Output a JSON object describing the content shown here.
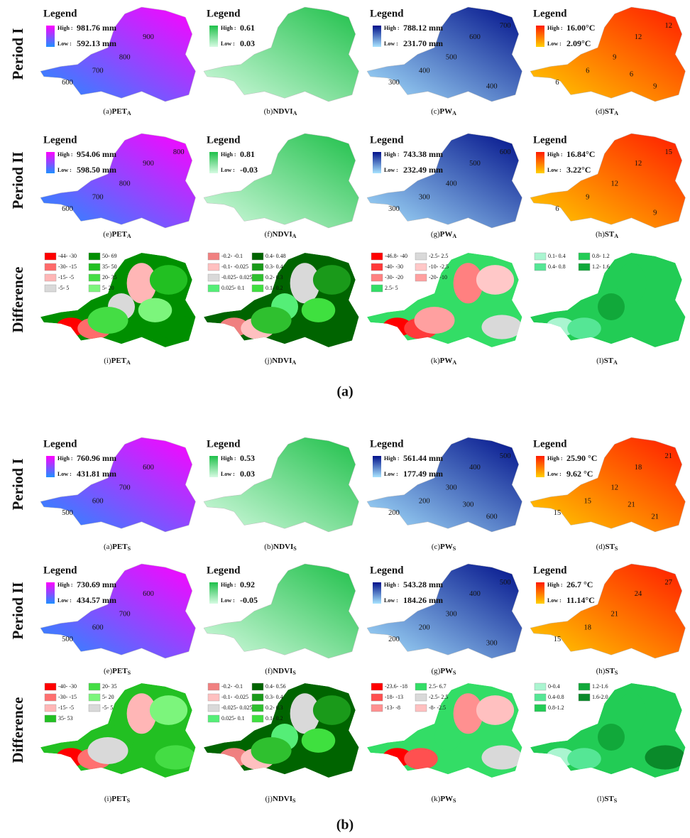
{
  "panels": [
    {
      "label": "(a)",
      "rows": [
        {
          "label": "Period I",
          "maps": [
            {
              "caption": {
                "letter": "(a)",
                "name": "PET",
                "sub": "A"
              },
              "legend": {
                "title": "Legend",
                "high": {
                  "label": "High :",
                  "value": "981.76 mm",
                  "color": "#ff00ff"
                },
                "low": {
                  "label": "Low :",
                  "value": "592.13 mm",
                  "color": "#1e90ff"
                }
              },
              "contours": [
                "600",
                "700",
                "800",
                "900"
              ]
            },
            {
              "caption": {
                "letter": "(b)",
                "name": "NDVI",
                "sub": "A"
              },
              "legend": {
                "title": "Legend",
                "high": {
                  "label": "High :",
                  "value": "0.61",
                  "color": "#1fc04a"
                },
                "low": {
                  "label": "Low :",
                  "value": "0.03",
                  "color": "#d6fbe2"
                }
              },
              "contours": []
            },
            {
              "caption": {
                "letter": "(c)",
                "name": "PW",
                "sub": "A"
              },
              "legend": {
                "title": "Legend",
                "high": {
                  "label": "High :",
                  "value": "788.12 mm",
                  "color": "#00108a"
                },
                "low": {
                  "label": "Low :",
                  "value": "231.70 mm",
                  "color": "#a8e4ff"
                }
              },
              "contours": [
                "300",
                "400",
                "500",
                "600",
                "700",
                "400"
              ]
            },
            {
              "caption": {
                "letter": "(d)",
                "name": "ST",
                "sub": "A"
              },
              "legend": {
                "title": "Legend",
                "high": {
                  "label": "High :",
                  "value": "16.00°C",
                  "color": "#ff1a00"
                },
                "low": {
                  "label": "Low :",
                  "value": "2.09°C",
                  "color": "#ffd000"
                }
              },
              "contours": [
                "6",
                "6",
                "9",
                "12",
                "12",
                "9",
                "6"
              ]
            }
          ]
        },
        {
          "label": "Period II",
          "maps": [
            {
              "caption": {
                "letter": "(e)",
                "name": "PET",
                "sub": "A"
              },
              "legend": {
                "title": "Legend",
                "high": {
                  "label": "High :",
                  "value": "954.06 mm",
                  "color": "#ff00ff"
                },
                "low": {
                  "label": "Low :",
                  "value": "598.50 mm",
                  "color": "#1e90ff"
                }
              },
              "contours": [
                "600",
                "700",
                "800",
                "900",
                "800"
              ]
            },
            {
              "caption": {
                "letter": "(f)",
                "name": "NDVI",
                "sub": "A"
              },
              "legend": {
                "title": "Legend",
                "high": {
                  "label": "High :",
                  "value": "0.81",
                  "color": "#1fc04a"
                },
                "low": {
                  "label": "Low :",
                  "value": "-0.03",
                  "color": "#d6fbe2"
                }
              },
              "contours": []
            },
            {
              "caption": {
                "letter": "(g)",
                "name": "PW",
                "sub": "A"
              },
              "legend": {
                "title": "Legend",
                "high": {
                  "label": "High :",
                  "value": "743.38 mm",
                  "color": "#00108a"
                },
                "low": {
                  "label": "Low :",
                  "value": "232.49 mm",
                  "color": "#a8e4ff"
                }
              },
              "contours": [
                "300",
                "300",
                "400",
                "500",
                "600"
              ]
            },
            {
              "caption": {
                "letter": "(h)",
                "name": "ST",
                "sub": "A"
              },
              "legend": {
                "title": "Legend",
                "high": {
                  "label": "High :",
                  "value": "16.84°C",
                  "color": "#ff1a00"
                },
                "low": {
                  "label": "Low :",
                  "value": "3.22°C",
                  "color": "#ffd000"
                }
              },
              "contours": [
                "6",
                "9",
                "12",
                "12",
                "15",
                "9"
              ]
            }
          ]
        },
        {
          "label": "Difference",
          "maps": [
            {
              "caption": {
                "letter": "(i)",
                "name": "PET",
                "sub": "A"
              },
              "classes": [
                {
                  "label": "-44- -30",
                  "color": "#ff0000"
                },
                {
                  "label": "-30- -15",
                  "color": "#ff6b6b"
                },
                {
                  "label": "-15- -5",
                  "color": "#ffb6b6"
                },
                {
                  "label": "-5- 5",
                  "color": "#d9d9d9"
                },
                {
                  "label": "50- 69",
                  "color": "#008f00"
                },
                {
                  "label": "35- 50",
                  "color": "#22c022"
                },
                {
                  "label": "20- 35",
                  "color": "#44dd44"
                },
                {
                  "label": "5- 20",
                  "color": "#7cf57c"
                }
              ]
            },
            {
              "caption": {
                "letter": "(j)",
                "name": "NDVI",
                "sub": "A"
              },
              "classes": [
                {
                  "label": "-0.2- -0.1",
                  "color": "#f08080"
                },
                {
                  "label": "-0.1- -0.025",
                  "color": "#ffc0c0"
                },
                {
                  "label": "-0.025- 0.025",
                  "color": "#d9d9d9"
                },
                {
                  "label": "0.025- 0.1",
                  "color": "#55ee77"
                },
                {
                  "label": "0.4- 0.48",
                  "color": "#006400"
                },
                {
                  "label": "0.3- 0.4",
                  "color": "#1a9a1a"
                },
                {
                  "label": "0.2- 0.3",
                  "color": "#2fc02f"
                },
                {
                  "label": "0.1- 0.2",
                  "color": "#3fe03f"
                }
              ]
            },
            {
              "caption": {
                "letter": "(k)",
                "name": "PW",
                "sub": "A"
              },
              "classes": [
                {
                  "label": "-46.8- -40",
                  "color": "#ff0000"
                },
                {
                  "label": "-40- -30",
                  "color": "#ff3a3a"
                },
                {
                  "label": "-30- -20",
                  "color": "#ff8080"
                },
                {
                  "label": "2.5- 5",
                  "color": "#33dd66"
                },
                {
                  "label": "-2.5- 2.5",
                  "color": "#d9d9d9"
                },
                {
                  "label": "-10- -2.5",
                  "color": "#ffc8c8"
                },
                {
                  "label": "-20- -10",
                  "color": "#ffa0a0"
                }
              ]
            },
            {
              "caption": {
                "letter": "(l)",
                "name": "ST",
                "sub": "A"
              },
              "classes": [
                {
                  "label": "0.1- 0.4",
                  "color": "#aaf5d0"
                },
                {
                  "label": "0.4- 0.8",
                  "color": "#55e695"
                },
                {
                  "label": "0.8- 1.2",
                  "color": "#22cc55"
                },
                {
                  "label": "1.2- 1.6",
                  "color": "#11a83a"
                }
              ]
            }
          ]
        }
      ]
    },
    {
      "label": "(b)",
      "rows": [
        {
          "label": "Period I",
          "maps": [
            {
              "caption": {
                "letter": "(a)",
                "name": "PET",
                "sub": "S"
              },
              "legend": {
                "title": "Legend",
                "high": {
                  "label": "High :",
                  "value": "760.96 mm",
                  "color": "#ff00ff"
                },
                "low": {
                  "label": "Low :",
                  "value": "431.81 mm",
                  "color": "#1e90ff"
                }
              },
              "contours": [
                "500",
                "600",
                "700",
                "600"
              ]
            },
            {
              "caption": {
                "letter": "(b)",
                "name": "NDVI",
                "sub": "S"
              },
              "legend": {
                "title": "Legend",
                "high": {
                  "label": "High :",
                  "value": "0.53",
                  "color": "#1fc04a"
                },
                "low": {
                  "label": "Low :",
                  "value": "0.03",
                  "color": "#d6fbe2"
                }
              },
              "contours": []
            },
            {
              "caption": {
                "letter": "(c)",
                "name": "PW",
                "sub": "S"
              },
              "legend": {
                "title": "Legend",
                "high": {
                  "label": "High :",
                  "value": "561.44 mm",
                  "color": "#00108a"
                },
                "low": {
                  "label": "Low :",
                  "value": "177.49 mm",
                  "color": "#a8e4ff"
                }
              },
              "contours": [
                "200",
                "200",
                "300",
                "400",
                "500",
                "600",
                "300"
              ]
            },
            {
              "caption": {
                "letter": "(d)",
                "name": "ST",
                "sub": "S"
              },
              "legend": {
                "title": "Legend",
                "high": {
                  "label": "High :",
                  "value": "25.90 °C",
                  "color": "#ff1a00"
                },
                "low": {
                  "label": "Low :",
                  "value": "9.62 °C",
                  "color": "#ffd000"
                }
              },
              "contours": [
                "15",
                "15",
                "12",
                "18",
                "21",
                "21",
                "21"
              ]
            }
          ]
        },
        {
          "label": "Period II",
          "maps": [
            {
              "caption": {
                "letter": "(e)",
                "name": "PET",
                "sub": "S"
              },
              "legend": {
                "title": "Legend",
                "high": {
                  "label": "High :",
                  "value": "730.69 mm",
                  "color": "#ff00ff"
                },
                "low": {
                  "label": "Low :",
                  "value": "434.57 mm",
                  "color": "#1e90ff"
                }
              },
              "contours": [
                "500",
                "600",
                "700",
                "600"
              ]
            },
            {
              "caption": {
                "letter": "(f)",
                "name": "NDVI",
                "sub": "S"
              },
              "legend": {
                "title": "Legend",
                "high": {
                  "label": "High :",
                  "value": "0.92",
                  "color": "#1fc04a"
                },
                "low": {
                  "label": "Low :",
                  "value": "-0.05",
                  "color": "#d6fbe2"
                }
              },
              "contours": []
            },
            {
              "caption": {
                "letter": "(g)",
                "name": "PW",
                "sub": "S"
              },
              "legend": {
                "title": "Legend",
                "high": {
                  "label": "High :",
                  "value": "543.28 mm",
                  "color": "#00108a"
                },
                "low": {
                  "label": "Low :",
                  "value": "184.26 mm",
                  "color": "#a8e4ff"
                }
              },
              "contours": [
                "200",
                "200",
                "300",
                "400",
                "500",
                "300"
              ]
            },
            {
              "caption": {
                "letter": "(h)",
                "name": "ST",
                "sub": "S"
              },
              "legend": {
                "title": "Legend",
                "high": {
                  "label": "High :",
                  "value": "26.7 °C",
                  "color": "#ff1a00"
                },
                "low": {
                  "label": "Low :",
                  "value": "11.14°C",
                  "color": "#ffd000"
                }
              },
              "contours": [
                "15",
                "18",
                "21",
                "24",
                "27"
              ]
            }
          ]
        },
        {
          "label": "Difference",
          "maps": [
            {
              "caption": {
                "letter": "(i)",
                "name": "PET",
                "sub": "S"
              },
              "classes": [
                {
                  "label": "-40- -30",
                  "color": "#ff0000"
                },
                {
                  "label": "-30- -15",
                  "color": "#ff7070"
                },
                {
                  "label": "-15- -5",
                  "color": "#ffb6b6"
                },
                {
                  "label": "35- 53",
                  "color": "#22c022"
                },
                {
                  "label": "20- 35",
                  "color": "#44dd44"
                },
                {
                  "label": "5- 20",
                  "color": "#7cf57c"
                },
                {
                  "label": "-5- 5",
                  "color": "#d9d9d9"
                }
              ]
            },
            {
              "caption": {
                "letter": "(j)",
                "name": "NDVI",
                "sub": "S"
              },
              "classes": [
                {
                  "label": "-0.2- -0.1",
                  "color": "#f08080"
                },
                {
                  "label": "-0.1- -0.025",
                  "color": "#ffc0c0"
                },
                {
                  "label": "-0.025- 0.025",
                  "color": "#d9d9d9"
                },
                {
                  "label": "0.025- 0.1",
                  "color": "#55ee77"
                },
                {
                  "label": "0.4- 0.56",
                  "color": "#006400"
                },
                {
                  "label": "0.3- 0.4",
                  "color": "#1a9a1a"
                },
                {
                  "label": "0.2- 0.3",
                  "color": "#2fc02f"
                },
                {
                  "label": "0.1- 0.2",
                  "color": "#3fe03f"
                }
              ]
            },
            {
              "caption": {
                "letter": "(k)",
                "name": "PW",
                "sub": "S"
              },
              "classes": [
                {
                  "label": "-23.6- -18",
                  "color": "#ff0000"
                },
                {
                  "label": "-18- -13",
                  "color": "#ff5050"
                },
                {
                  "label": "-13- -8",
                  "color": "#ff9090"
                },
                {
                  "label": "2.5- 6.7",
                  "color": "#33dd66"
                },
                {
                  "label": "-2.5- 2.5",
                  "color": "#d9d9d9"
                },
                {
                  "label": "-8- -2.5",
                  "color": "#ffc0c0"
                }
              ]
            },
            {
              "caption": {
                "letter": "(l)",
                "name": "ST",
                "sub": "S"
              },
              "classes": [
                {
                  "label": "0-0.4",
                  "color": "#aaf5d0"
                },
                {
                  "label": "0.4-0.8",
                  "color": "#55e695"
                },
                {
                  "label": "0.8-1.2",
                  "color": "#22cc55"
                },
                {
                  "label": "1.2-1.6",
                  "color": "#11a83a"
                },
                {
                  "label": "1.6-2.0",
                  "color": "#0a8a2a"
                }
              ]
            }
          ]
        }
      ]
    }
  ]
}
